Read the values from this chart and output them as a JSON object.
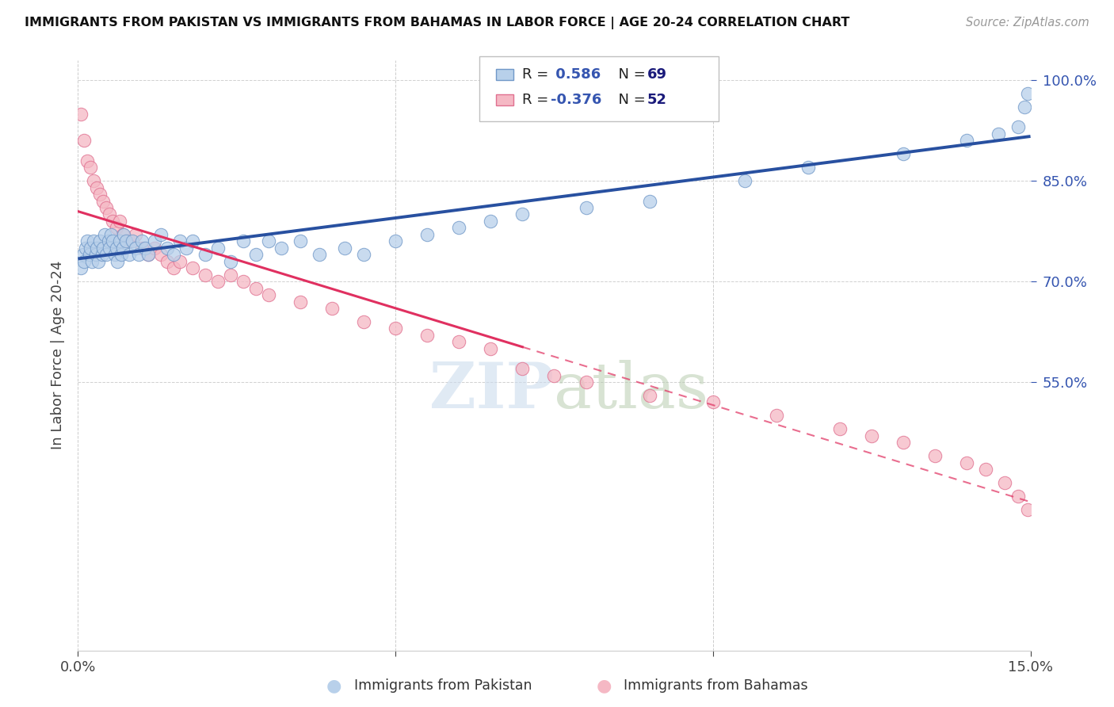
{
  "title": "IMMIGRANTS FROM PAKISTAN VS IMMIGRANTS FROM BAHAMAS IN LABOR FORCE | AGE 20-24 CORRELATION CHART",
  "source": "Source: ZipAtlas.com",
  "ylabel": "In Labor Force | Age 20-24",
  "xlim": [
    0.0,
    15.0
  ],
  "ylim": [
    15.0,
    103.0
  ],
  "x_ticks": [
    0.0,
    5.0,
    10.0,
    15.0
  ],
  "y_ticks": [
    55.0,
    70.0,
    85.0,
    100.0
  ],
  "pakistan_color": "#b8d0ea",
  "bahamas_color": "#f5b8c4",
  "pakistan_edge_color": "#7098c8",
  "bahamas_edge_color": "#e07090",
  "pakistan_line_color": "#2850a0",
  "bahamas_line_color": "#e03060",
  "pakistan_R": 0.586,
  "pakistan_N": 69,
  "bahamas_R": -0.376,
  "bahamas_N": 52,
  "R_label_color": "#3555b0",
  "N_label_color": "#1a1a7a",
  "pakistan_x": [
    0.05,
    0.08,
    0.1,
    0.12,
    0.15,
    0.18,
    0.2,
    0.22,
    0.25,
    0.28,
    0.3,
    0.32,
    0.35,
    0.38,
    0.4,
    0.42,
    0.45,
    0.48,
    0.5,
    0.52,
    0.55,
    0.58,
    0.6,
    0.62,
    0.65,
    0.68,
    0.7,
    0.72,
    0.75,
    0.8,
    0.85,
    0.9,
    0.95,
    1.0,
    1.05,
    1.1,
    1.2,
    1.3,
    1.4,
    1.5,
    1.6,
    1.7,
    1.8,
    2.0,
    2.2,
    2.4,
    2.6,
    2.8,
    3.0,
    3.2,
    3.5,
    3.8,
    4.2,
    4.5,
    5.0,
    5.5,
    6.0,
    6.5,
    7.0,
    8.0,
    9.0,
    10.5,
    11.5,
    13.0,
    14.0,
    14.5,
    14.8,
    14.9,
    14.95
  ],
  "pakistan_y": [
    72,
    74,
    73,
    75,
    76,
    74,
    75,
    73,
    76,
    74,
    75,
    73,
    76,
    74,
    75,
    77,
    74,
    76,
    75,
    77,
    76,
    74,
    75,
    73,
    76,
    74,
    75,
    77,
    76,
    74,
    76,
    75,
    74,
    76,
    75,
    74,
    76,
    77,
    75,
    74,
    76,
    75,
    76,
    74,
    75,
    73,
    76,
    74,
    76,
    75,
    76,
    74,
    75,
    74,
    76,
    77,
    78,
    79,
    80,
    81,
    82,
    85,
    87,
    89,
    91,
    92,
    93,
    96,
    98
  ],
  "bahamas_x": [
    0.05,
    0.1,
    0.15,
    0.2,
    0.25,
    0.3,
    0.35,
    0.4,
    0.45,
    0.5,
    0.55,
    0.6,
    0.65,
    0.7,
    0.8,
    0.9,
    1.0,
    1.1,
    1.2,
    1.3,
    1.4,
    1.5,
    1.6,
    1.8,
    2.0,
    2.2,
    2.4,
    2.6,
    2.8,
    3.0,
    3.5,
    4.0,
    4.5,
    5.0,
    5.5,
    6.0,
    6.5,
    7.0,
    7.5,
    8.0,
    9.0,
    10.0,
    11.0,
    12.0,
    12.5,
    13.0,
    13.5,
    14.0,
    14.3,
    14.6,
    14.8,
    14.95
  ],
  "bahamas_y": [
    95,
    91,
    88,
    87,
    85,
    84,
    83,
    82,
    81,
    80,
    79,
    78,
    79,
    77,
    76,
    77,
    75,
    74,
    75,
    74,
    73,
    72,
    73,
    72,
    71,
    70,
    71,
    70,
    69,
    68,
    67,
    66,
    64,
    63,
    62,
    61,
    60,
    57,
    56,
    55,
    53,
    52,
    50,
    48,
    47,
    46,
    44,
    43,
    42,
    40,
    38,
    36
  ]
}
